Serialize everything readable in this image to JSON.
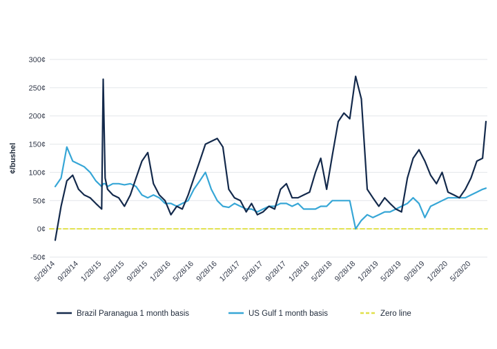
{
  "chart_data": {
    "type": "line",
    "title": "",
    "ylabel": "¢/bushel",
    "xlabel": "",
    "ylim": [
      -50,
      300
    ],
    "yticks": [
      -50,
      0,
      50,
      100,
      150,
      200,
      250,
      300
    ],
    "ytick_labels": [
      "-50¢",
      "0¢",
      "50¢",
      "100¢",
      "150¢",
      "200¢",
      "250¢",
      "300¢"
    ],
    "x_tick_labels": [
      "5/28/14",
      "9/28/14",
      "1/28/15",
      "5/28/15",
      "9/28/15",
      "1/28/16",
      "5/28/16",
      "9/28/16",
      "1/28/17",
      "5/28/17",
      "9/28/17",
      "1/28/18",
      "5/28/18",
      "9/28/18",
      "1/28/19",
      "5/28/19",
      "9/28/19",
      "1/28/20",
      "5/28/20"
    ],
    "grid": "horizontal",
    "legend_position": "bottom",
    "x_dates": [
      "5/28/14",
      "6/28/14",
      "7/28/14",
      "8/28/14",
      "9/28/14",
      "10/28/14",
      "11/28/14",
      "12/28/14",
      "1/28/15",
      "2/5/15",
      "2/15/15",
      "2/28/15",
      "3/28/15",
      "4/28/15",
      "5/28/15",
      "6/28/15",
      "7/28/15",
      "8/28/15",
      "9/28/15",
      "10/28/15",
      "11/28/15",
      "12/28/15",
      "1/28/16",
      "2/28/16",
      "3/28/16",
      "4/28/16",
      "5/28/16",
      "6/28/16",
      "7/28/16",
      "8/28/16",
      "9/28/16",
      "10/28/16",
      "11/28/16",
      "12/28/16",
      "1/28/17",
      "2/28/17",
      "3/28/17",
      "4/28/17",
      "5/28/17",
      "6/28/17",
      "7/28/17",
      "8/28/17",
      "9/28/17",
      "10/28/17",
      "11/28/17",
      "12/28/17",
      "1/28/18",
      "2/28/18",
      "3/28/18",
      "4/28/18",
      "5/28/18",
      "6/28/18",
      "7/28/18",
      "8/28/18",
      "9/28/18",
      "10/28/18",
      "11/28/18",
      "12/28/18",
      "1/28/19",
      "2/28/19",
      "3/28/19",
      "4/28/19",
      "5/28/19",
      "6/28/19",
      "7/28/19",
      "8/28/19",
      "9/28/19",
      "10/28/19",
      "11/28/19",
      "12/28/19",
      "1/28/20",
      "2/28/20",
      "3/28/20",
      "4/28/20",
      "5/28/20",
      "6/28/20",
      "7/28/20",
      "8/15/20"
    ],
    "series": [
      {
        "name": "Brazil Paranagua 1 month basis",
        "color": "#13294b",
        "style": "solid",
        "values": [
          -20,
          40,
          85,
          95,
          70,
          60,
          55,
          45,
          35,
          265,
          90,
          70,
          60,
          55,
          40,
          60,
          90,
          120,
          135,
          80,
          60,
          50,
          25,
          40,
          35,
          60,
          90,
          120,
          150,
          155,
          160,
          145,
          70,
          55,
          50,
          30,
          45,
          25,
          30,
          40,
          35,
          70,
          80,
          55,
          55,
          60,
          65,
          100,
          125,
          70,
          130,
          190,
          205,
          195,
          270,
          230,
          70,
          55,
          40,
          55,
          45,
          35,
          30,
          90,
          125,
          140,
          120,
          95,
          80,
          100,
          65,
          60,
          55,
          70,
          90,
          120,
          125,
          190
        ]
      },
      {
        "name": "US Gulf 1 month basis",
        "color": "#36a6d6",
        "style": "solid",
        "values": [
          75,
          90,
          145,
          120,
          115,
          110,
          100,
          85,
          75,
          80,
          80,
          75,
          80,
          80,
          78,
          80,
          75,
          60,
          55,
          60,
          55,
          45,
          45,
          40,
          45,
          50,
          70,
          85,
          100,
          70,
          50,
          40,
          38,
          45,
          40,
          35,
          35,
          30,
          35,
          40,
          40,
          45,
          45,
          40,
          45,
          35,
          35,
          35,
          40,
          40,
          50,
          50,
          50,
          50,
          0,
          15,
          25,
          20,
          25,
          30,
          30,
          35,
          40,
          45,
          55,
          45,
          20,
          40,
          45,
          50,
          55,
          55,
          55,
          55,
          60,
          65,
          70,
          72
        ]
      },
      {
        "name": "Zero line",
        "color": "#e1e04a",
        "style": "dashed",
        "values": [
          0,
          0
        ]
      }
    ]
  }
}
